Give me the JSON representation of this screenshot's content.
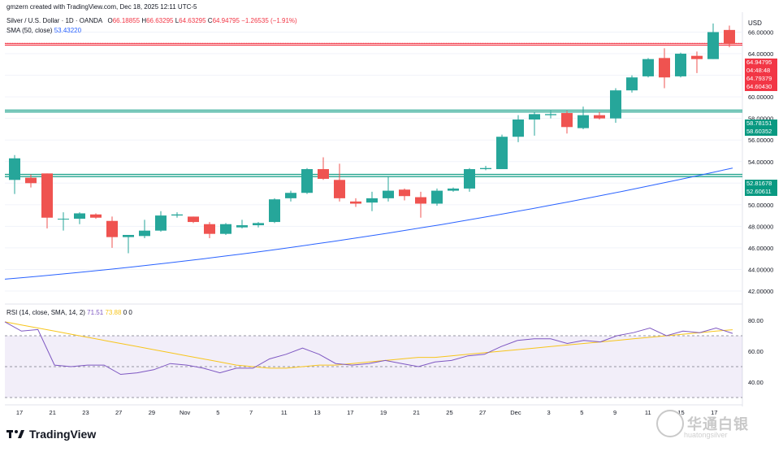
{
  "header": {
    "created": "gmzern created with TradingView.com, Dec 18, 2025 12:11 UTC-5",
    "symbol": "Silver / U.S. Dollar · 1D · OANDA",
    "ohlc": {
      "o_label": "O",
      "o": "66.18855",
      "h_label": "H",
      "h": "66.63295",
      "l_label": "L",
      "l": "64.63295",
      "c_label": "C",
      "c": "64.94795",
      "change": "−1.26535 (−1.91%)"
    },
    "sma_label": "SMA (50, close)",
    "sma_value": "53.43220",
    "rsi_label": "RSI (14, close, SMA, 14, 2)",
    "rsi_value": "71.51",
    "rsi_ma_value": "73.88",
    "rsi_extra": "0  0"
  },
  "currency": "USD",
  "price_tags": [
    {
      "value": "64.94795",
      "color": "#f23645"
    },
    {
      "value": "04:48:48",
      "color": "#f23645"
    },
    {
      "value": "64.79379",
      "color": "#f23645"
    },
    {
      "value": "64.60430",
      "color": "#f23645"
    },
    {
      "value": "58.78151",
      "color": "#089981"
    },
    {
      "value": "58.60352",
      "color": "#089981"
    },
    {
      "value": "52.81678",
      "color": "#089981"
    },
    {
      "value": "52.60611",
      "color": "#089981"
    }
  ],
  "footer": {
    "brand": "TradingView"
  },
  "watermark": {
    "text": "华通白银",
    "sub": "huatongsilver"
  },
  "colors": {
    "up": "#26a69a",
    "down": "#ef5350",
    "sma": "#2962ff",
    "rsi": "#7e57c2",
    "rsi_ma": "#f7c51c",
    "resistance": "#f23645",
    "support": "#089981"
  },
  "chart_data": [
    {
      "type": "candlestick",
      "title": "Silver / U.S. Dollar · 1D · OANDA",
      "ylim": [
        42,
        66.5
      ],
      "y_ticks": [
        "66.00000",
        "64.00000",
        "62.00000",
        "60.00000",
        "58.00000",
        "56.00000",
        "54.00000",
        "52.00000",
        "50.00000",
        "48.00000",
        "46.00000",
        "44.00000",
        "42.00000"
      ],
      "x_ticks": [
        "17",
        "21",
        "23",
        "27",
        "29",
        "Nov",
        "5",
        "7",
        "11",
        "13",
        "17",
        "19",
        "21",
        "25",
        "27",
        "Dec",
        "3",
        "5",
        "9",
        "11",
        "15",
        "17"
      ],
      "candles": [
        {
          "o": 52.3,
          "h": 54.6,
          "l": 51.0,
          "c": 54.3
        },
        {
          "o": 52.5,
          "h": 52.8,
          "l": 51.6,
          "c": 52.0
        },
        {
          "o": 52.9,
          "h": 52.9,
          "l": 47.8,
          "c": 48.8
        },
        {
          "o": 48.7,
          "h": 49.3,
          "l": 47.6,
          "c": 48.7
        },
        {
          "o": 48.7,
          "h": 49.3,
          "l": 48.2,
          "c": 49.2
        },
        {
          "o": 49.1,
          "h": 49.2,
          "l": 48.7,
          "c": 48.8
        },
        {
          "o": 48.5,
          "h": 48.9,
          "l": 46.0,
          "c": 47.0
        },
        {
          "o": 47.0,
          "h": 47.2,
          "l": 45.5,
          "c": 47.2
        },
        {
          "o": 47.1,
          "h": 48.6,
          "l": 46.9,
          "c": 47.6
        },
        {
          "o": 47.6,
          "h": 49.4,
          "l": 47.5,
          "c": 49.0
        },
        {
          "o": 49.0,
          "h": 49.3,
          "l": 48.8,
          "c": 49.1
        },
        {
          "o": 48.9,
          "h": 48.9,
          "l": 48.3,
          "c": 48.4
        },
        {
          "o": 48.2,
          "h": 48.4,
          "l": 46.9,
          "c": 47.3
        },
        {
          "o": 47.3,
          "h": 48.3,
          "l": 47.2,
          "c": 48.2
        },
        {
          "o": 47.9,
          "h": 48.6,
          "l": 47.8,
          "c": 48.1
        },
        {
          "o": 48.1,
          "h": 48.4,
          "l": 47.9,
          "c": 48.3
        },
        {
          "o": 48.4,
          "h": 50.6,
          "l": 48.3,
          "c": 50.5
        },
        {
          "o": 50.6,
          "h": 51.3,
          "l": 50.3,
          "c": 51.1
        },
        {
          "o": 51.1,
          "h": 53.4,
          "l": 51.0,
          "c": 53.3
        },
        {
          "o": 53.3,
          "h": 54.4,
          "l": 52.3,
          "c": 52.4
        },
        {
          "o": 52.3,
          "h": 53.8,
          "l": 50.3,
          "c": 50.6
        },
        {
          "o": 50.3,
          "h": 50.6,
          "l": 49.8,
          "c": 50.1
        },
        {
          "o": 50.2,
          "h": 51.2,
          "l": 49.4,
          "c": 50.6
        },
        {
          "o": 50.6,
          "h": 52.6,
          "l": 50.3,
          "c": 51.3
        },
        {
          "o": 51.4,
          "h": 51.5,
          "l": 50.4,
          "c": 50.8
        },
        {
          "o": 50.7,
          "h": 51.2,
          "l": 48.8,
          "c": 50.1
        },
        {
          "o": 50.1,
          "h": 51.5,
          "l": 49.9,
          "c": 51.3
        },
        {
          "o": 51.3,
          "h": 51.6,
          "l": 51.2,
          "c": 51.5
        },
        {
          "o": 51.5,
          "h": 53.4,
          "l": 51.2,
          "c": 53.3
        },
        {
          "o": 53.3,
          "h": 53.6,
          "l": 53.2,
          "c": 53.4
        },
        {
          "o": 53.3,
          "h": 56.5,
          "l": 53.3,
          "c": 56.3
        },
        {
          "o": 56.3,
          "h": 58.3,
          "l": 55.8,
          "c": 57.9
        },
        {
          "o": 57.9,
          "h": 58.6,
          "l": 56.4,
          "c": 58.4
        },
        {
          "o": 58.3,
          "h": 58.7,
          "l": 58.0,
          "c": 58.4
        },
        {
          "o": 58.5,
          "h": 58.7,
          "l": 56.6,
          "c": 57.2
        },
        {
          "o": 57.1,
          "h": 59.1,
          "l": 57.0,
          "c": 58.3
        },
        {
          "o": 58.3,
          "h": 58.6,
          "l": 57.9,
          "c": 58.0
        },
        {
          "o": 58.0,
          "h": 60.8,
          "l": 57.6,
          "c": 60.6
        },
        {
          "o": 60.6,
          "h": 62.0,
          "l": 60.4,
          "c": 61.8
        },
        {
          "o": 61.9,
          "h": 63.6,
          "l": 61.8,
          "c": 63.5
        },
        {
          "o": 63.6,
          "h": 64.5,
          "l": 60.8,
          "c": 61.8
        },
        {
          "o": 61.9,
          "h": 64.1,
          "l": 61.8,
          "c": 64.0
        },
        {
          "o": 63.8,
          "h": 64.2,
          "l": 62.2,
          "c": 63.5
        },
        {
          "o": 63.5,
          "h": 66.8,
          "l": 63.5,
          "c": 66.0
        },
        {
          "o": 66.2,
          "h": 66.6,
          "l": 64.6,
          "c": 64.9
        }
      ],
      "sma": {
        "name": "SMA (50, close)",
        "start": 43.1,
        "end": 53.4
      },
      "levels": [
        64.95,
        64.79,
        58.78,
        58.6,
        52.82,
        52.61
      ]
    },
    {
      "type": "line",
      "title": "RSI (14, close, SMA, 14, 2)",
      "ylim": [
        30,
        85
      ],
      "y_ticks": [
        "80.00",
        "60.00",
        "40.00"
      ],
      "bands": [
        70,
        50,
        30
      ],
      "rsi": [
        79,
        73,
        74,
        51,
        50,
        51,
        51,
        45,
        46,
        48,
        52,
        51,
        49,
        46,
        49,
        49,
        55,
        58,
        62,
        58,
        52,
        51,
        52,
        54,
        52,
        50,
        53,
        54,
        57,
        58,
        63,
        67,
        68,
        68,
        65,
        67,
        66,
        70,
        72,
        75,
        70,
        73,
        72,
        75,
        71.5
      ],
      "rsi_ma": [
        79,
        77,
        75,
        73,
        71,
        69,
        67,
        65,
        63,
        61,
        59,
        57,
        55,
        53,
        51,
        50,
        49,
        49,
        50,
        51,
        51,
        52,
        53,
        54,
        55,
        56,
        56,
        57,
        58,
        59,
        60,
        61,
        62,
        63,
        64,
        65,
        66,
        67,
        68,
        69,
        70,
        71,
        72,
        73,
        73.9
      ]
    }
  ]
}
